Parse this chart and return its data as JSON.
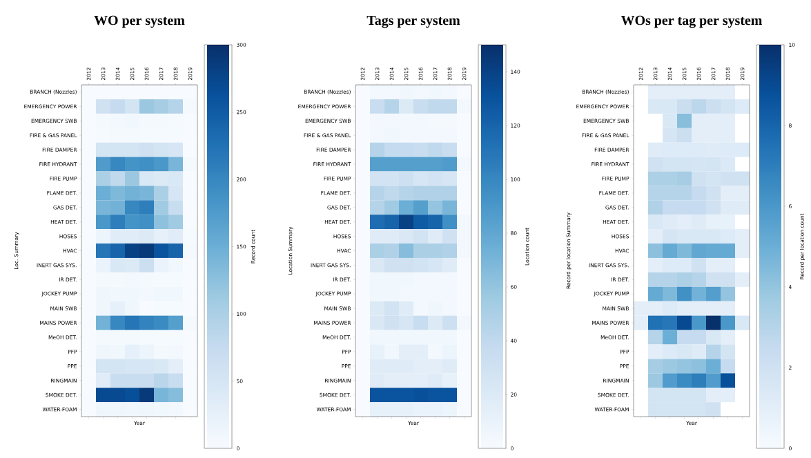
{
  "chart_data": [
    {
      "type": "heatmap",
      "title": "WO per system",
      "xlabel": "Year",
      "ylabel": "Loc. Summary",
      "clabel": "Record count",
      "categories": [
        "2012",
        "2013",
        "2014",
        "2015",
        "2016",
        "2017",
        "2018",
        "2019"
      ],
      "y_categories": [
        "BRANCH (Nozzles)",
        "EMERGENCY POWER",
        "EMERGENCY SWB",
        "FIRE & GAS PANEL",
        "FIRE DAMPER",
        "FIRE HYDRANT",
        "FIRE PUMP",
        "FLAME DET.",
        "GAS DET.",
        "HEAT DET.",
        "HOSES",
        "HVAC",
        "INERT GAS SYS.",
        "IR DET.",
        "JOCKEY PUMP",
        "MAIN SWB",
        "MAINS POWER",
        "MeOH DET.",
        "PFP",
        "PPE",
        "RINGMAIN",
        "SMOKE DET.",
        "WATER-FOAM"
      ],
      "cells": [
        [
          0,
          0,
          0,
          0,
          0,
          0,
          0,
          0
        ],
        [
          0,
          60,
          75,
          55,
          115,
          105,
          90,
          5
        ],
        [
          0,
          5,
          8,
          10,
          5,
          5,
          3,
          0
        ],
        [
          0,
          3,
          5,
          5,
          3,
          3,
          3,
          0
        ],
        [
          0,
          55,
          55,
          55,
          60,
          55,
          50,
          0
        ],
        [
          0,
          175,
          200,
          185,
          190,
          180,
          140,
          5
        ],
        [
          0,
          100,
          80,
          115,
          45,
          40,
          45,
          0
        ],
        [
          0,
          150,
          135,
          145,
          140,
          100,
          50,
          0
        ],
        [
          0,
          140,
          145,
          200,
          210,
          110,
          70,
          0
        ],
        [
          0,
          180,
          210,
          185,
          190,
          125,
          110,
          0
        ],
        [
          0,
          15,
          35,
          35,
          40,
          25,
          35,
          3
        ],
        [
          0,
          220,
          240,
          280,
          290,
          260,
          240,
          5
        ],
        [
          0,
          20,
          45,
          40,
          65,
          20,
          10,
          0
        ],
        [
          0,
          5,
          5,
          8,
          5,
          3,
          3,
          0
        ],
        [
          0,
          12,
          10,
          10,
          8,
          10,
          10,
          0
        ],
        [
          0,
          12,
          25,
          12,
          0,
          3,
          3,
          0
        ],
        [
          0,
          145,
          200,
          220,
          205,
          195,
          170,
          5
        ],
        [
          0,
          5,
          5,
          5,
          3,
          3,
          3,
          0
        ],
        [
          0,
          12,
          10,
          25,
          15,
          5,
          8,
          0
        ],
        [
          0,
          55,
          55,
          50,
          50,
          45,
          30,
          0
        ],
        [
          0,
          35,
          70,
          70,
          70,
          85,
          70,
          0
        ],
        [
          0,
          270,
          270,
          265,
          290,
          140,
          130,
          0
        ],
        [
          0,
          12,
          12,
          10,
          12,
          10,
          8,
          0
        ]
      ],
      "clim": [
        0,
        300
      ],
      "cticks": [
        0,
        50,
        100,
        150,
        200,
        250,
        300
      ]
    },
    {
      "type": "heatmap",
      "title": "Tags per system",
      "xlabel": "Year",
      "ylabel": "Location Summary",
      "clabel": "Location count",
      "categories": [
        "2012",
        "2013",
        "2014",
        "2015",
        "2016",
        "2017",
        "2018",
        "2019"
      ],
      "y_categories": [
        "BRANCH (Nozzles)",
        "EMERGENCY POWER",
        "EMERGENCY SWB",
        "FIRE & GAS PANEL",
        "FIRE DAMPER",
        "FIRE HYDRANT",
        "FIRE PUMP",
        "FLAME DET.",
        "GAS DET.",
        "HEAT DET.",
        "HOSES",
        "HVAC",
        "INERT GAS SYS.",
        "IR DET.",
        "JOCKEY PUMP",
        "MAIN SWB",
        "MAINS POWER",
        "MeOH DET.",
        "PFP",
        "PPE",
        "RINGMAIN",
        "SMOKE DET.",
        "WATER-FOAM"
      ],
      "cells": [
        [
          0,
          3,
          3,
          5,
          3,
          5,
          3,
          0
        ],
        [
          0,
          35,
          45,
          20,
          35,
          40,
          40,
          3
        ],
        [
          0,
          3,
          3,
          3,
          3,
          2,
          2,
          0
        ],
        [
          0,
          3,
          5,
          4,
          3,
          3,
          3,
          0
        ],
        [
          0,
          45,
          38,
          38,
          35,
          40,
          35,
          0
        ],
        [
          0,
          85,
          85,
          85,
          85,
          85,
          88,
          3
        ],
        [
          0,
          28,
          28,
          32,
          25,
          28,
          25,
          0
        ],
        [
          0,
          45,
          40,
          45,
          48,
          48,
          48,
          0
        ],
        [
          0,
          45,
          55,
          75,
          85,
          60,
          70,
          0
        ],
        [
          0,
          115,
          120,
          140,
          125,
          120,
          95,
          3
        ],
        [
          0,
          18,
          18,
          22,
          28,
          18,
          30,
          3
        ],
        [
          0,
          50,
          48,
          65,
          50,
          50,
          48,
          3
        ],
        [
          0,
          22,
          30,
          30,
          28,
          25,
          18,
          0
        ],
        [
          0,
          5,
          5,
          5,
          4,
          4,
          3,
          0
        ],
        [
          0,
          5,
          5,
          3,
          3,
          3,
          3,
          0
        ],
        [
          0,
          20,
          28,
          18,
          3,
          6,
          3,
          0
        ],
        [
          0,
          22,
          30,
          25,
          35,
          20,
          32,
          3
        ],
        [
          0,
          5,
          5,
          5,
          5,
          5,
          5,
          0
        ],
        [
          0,
          12,
          5,
          15,
          15,
          3,
          8,
          0
        ],
        [
          0,
          18,
          18,
          18,
          15,
          15,
          18,
          0
        ],
        [
          0,
          18,
          15,
          15,
          15,
          18,
          12,
          0
        ],
        [
          0,
          130,
          130,
          130,
          132,
          130,
          130,
          0
        ],
        [
          0,
          12,
          12,
          12,
          10,
          10,
          8,
          0
        ]
      ],
      "clim": [
        0,
        150
      ],
      "cticks": [
        0,
        20,
        40,
        60,
        80,
        100,
        120,
        140
      ]
    },
    {
      "type": "heatmap",
      "title": "WOs per tag per system",
      "xlabel": "Year",
      "ylabel": "Record per location Summary",
      "clabel": "Record per location count",
      "categories": [
        "2012",
        "2013",
        "2014",
        "2015",
        "2016",
        "2017",
        "2018",
        "2019"
      ],
      "y_categories": [
        "BRANCH (Nozzles)",
        "EMERGENCY POWER",
        "EMERGENCY SWB",
        "FIRE & GAS PANEL",
        "FIRE DAMPER",
        "FIRE HYDRANT",
        "FIRE PUMP",
        "FLAME DET.",
        "GAS DET.",
        "HEAT DET.",
        "HOSES",
        "HVAC",
        "INERT GAS SYS.",
        "IR DET.",
        "JOCKEY PUMP",
        "MAIN SWB",
        "MAINS POWER",
        "MeOH DET.",
        "PFP",
        "PPE",
        "RINGMAIN",
        "SMOKE DET.",
        "WATER-FOAM"
      ],
      "cells": [
        [
          null,
          1,
          1,
          1,
          1,
          1,
          1,
          null
        ],
        [
          null,
          1.5,
          1.5,
          2.3,
          2.8,
          2.2,
          1.8,
          1.3
        ],
        [
          null,
          null,
          1.5,
          4.3,
          1,
          1,
          1,
          null
        ],
        [
          null,
          null,
          1.7,
          2.2,
          1,
          1,
          1,
          null
        ],
        [
          null,
          1.2,
          1.3,
          1.3,
          1.3,
          1.2,
          1.3,
          1.3
        ],
        [
          null,
          2,
          1.8,
          1.8,
          1.7,
          1.8,
          1.4,
          null
        ],
        [
          null,
          3.3,
          3.3,
          3.5,
          2,
          1.8,
          2,
          2
        ],
        [
          null,
          3,
          3,
          3,
          2.5,
          2,
          1,
          1
        ],
        [
          null,
          3.2,
          2.5,
          2.5,
          2.5,
          2,
          1.2,
          1.2
        ],
        [
          null,
          1.5,
          1.2,
          1,
          1.2,
          0.8,
          0.8,
          null
        ],
        [
          null,
          1,
          1.7,
          1.5,
          1.5,
          1.5,
          1.3,
          1
        ],
        [
          null,
          4.2,
          5.2,
          4.5,
          5.3,
          5.2,
          5.2,
          1
        ],
        [
          null,
          1,
          1.3,
          1.3,
          2,
          1,
          1,
          null
        ],
        [
          null,
          3,
          3,
          3.3,
          3,
          2,
          2,
          1
        ],
        [
          null,
          5.2,
          4.5,
          6.3,
          4.8,
          5.7,
          4,
          null
        ],
        [
          1,
          1,
          1.3,
          1,
          1,
          1,
          1,
          null
        ],
        [
          1,
          7.5,
          7.3,
          9,
          6,
          10,
          6,
          1.5
        ],
        [
          null,
          3,
          5,
          2.5,
          2.5,
          1.5,
          1,
          null
        ],
        [
          null,
          1,
          1.3,
          1.5,
          1.2,
          3,
          1.8,
          null
        ],
        [
          null,
          3.5,
          3.8,
          4,
          4.2,
          5,
          2.5,
          null
        ],
        [
          null,
          3.8,
          5.8,
          6.5,
          7,
          5.8,
          8.8,
          null
        ],
        [
          null,
          1.8,
          1.8,
          1.8,
          1.8,
          1,
          1,
          null
        ],
        [
          null,
          1.8,
          1.8,
          1.8,
          1.8,
          2,
          null,
          null
        ]
      ],
      "clim": [
        0,
        10
      ],
      "cticks": [
        0,
        2,
        4,
        6,
        8,
        10
      ]
    }
  ]
}
